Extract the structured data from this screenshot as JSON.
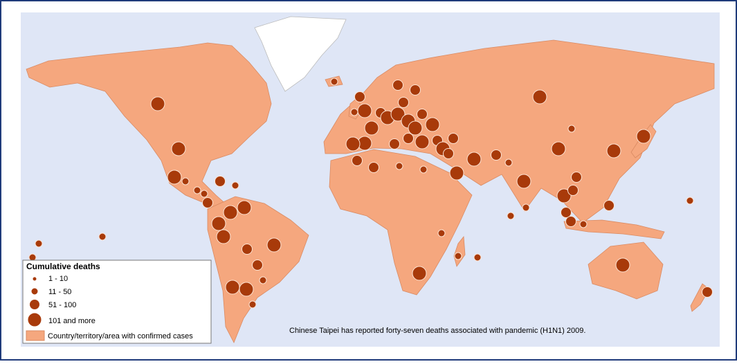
{
  "legend": {
    "title": "Cumulative deaths",
    "items": [
      "1 - 10",
      "11 - 50",
      "51 - 100",
      "101 and more"
    ],
    "area_label": "Country/territory/area with confirmed cases"
  },
  "note": "Chinese Taipei has reported forty-seven deaths associated with pandemic (H1N1) 2009."
}
